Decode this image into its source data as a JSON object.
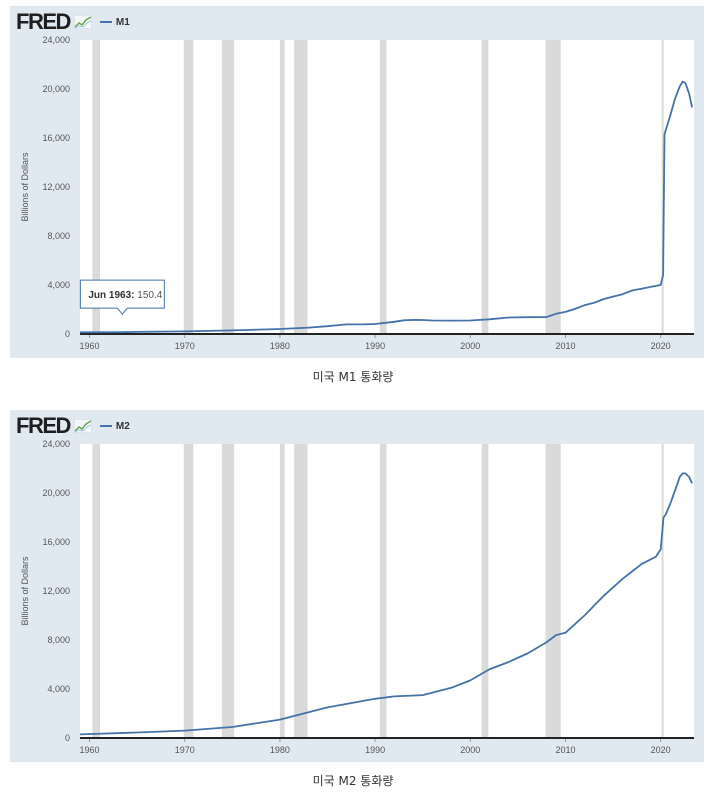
{
  "charts": [
    {
      "logo": "FRED",
      "legend_label": "M1",
      "caption": "미국 M1 통화량",
      "tooltip": {
        "label": "Jun 1963:",
        "value": "150.4",
        "x": 1963.45,
        "y": 150.4
      }
    },
    {
      "logo": "FRED",
      "legend_label": "M2",
      "caption": "미국 M2 통화량"
    }
  ],
  "colors": {
    "line": "#4572a7",
    "recession": "#dadada",
    "plot_bg": "#ffffff",
    "panel_bg": "#e1e9f0"
  },
  "recessions": [
    [
      1960.3,
      1961.1
    ],
    [
      1969.9,
      1970.9
    ],
    [
      1973.9,
      1975.2
    ],
    [
      1980.0,
      1980.5
    ],
    [
      1981.5,
      1982.9
    ],
    [
      1990.5,
      1991.2
    ],
    [
      2001.2,
      2001.9
    ],
    [
      2007.9,
      2009.5
    ],
    [
      2020.1,
      2020.3
    ]
  ],
  "chart_data": [
    {
      "type": "line",
      "title": "",
      "xlabel": "",
      "ylabel": "Billions of Dollars",
      "xlim": [
        1959,
        2023.5
      ],
      "ylim": [
        0,
        24000
      ],
      "yticks": [
        0,
        4000,
        8000,
        12000,
        16000,
        20000,
        24000
      ],
      "ytick_labels": [
        "0",
        "4,000",
        "8,000",
        "12,000",
        "16,000",
        "20,000",
        "24,000"
      ],
      "xticks": [
        1960,
        1970,
        1980,
        1990,
        2000,
        2010,
        2020
      ],
      "xtick_labels": [
        "1960",
        "1970",
        "1980",
        "1990",
        "2000",
        "2010",
        "2020"
      ],
      "series": [
        {
          "name": "M1",
          "x": [
            1959,
            1963.45,
            1965,
            1970,
            1975,
            1980,
            1983,
            1985,
            1987,
            1989,
            1990,
            1992,
            1993,
            1994,
            1995,
            1996,
            1998,
            2000,
            2001,
            2002,
            2004,
            2006,
            2008,
            2009,
            2010,
            2011,
            2012,
            2013,
            2014,
            2015,
            2016,
            2017,
            2018,
            2019,
            2020,
            2020.25,
            2020.4,
            2021,
            2021.5,
            2022,
            2022.3,
            2022.6,
            2023,
            2023.3
          ],
          "y": [
            140,
            150.4,
            170,
            215,
            290,
            410,
            525,
            640,
            780,
            790,
            820,
            1000,
            1120,
            1150,
            1140,
            1100,
            1090,
            1100,
            1150,
            1200,
            1350,
            1370,
            1380,
            1650,
            1800,
            2050,
            2350,
            2550,
            2850,
            3050,
            3250,
            3550,
            3700,
            3850,
            4000,
            4800,
            16300,
            17800,
            19200,
            20200,
            20600,
            20500,
            19600,
            18500
          ]
        }
      ]
    },
    {
      "type": "line",
      "title": "",
      "xlabel": "",
      "ylabel": "Billions of Dollars",
      "xlim": [
        1959,
        2023.5
      ],
      "ylim": [
        0,
        24000
      ],
      "yticks": [
        0,
        4000,
        8000,
        12000,
        16000,
        20000,
        24000
      ],
      "ytick_labels": [
        "0",
        "4,000",
        "8,000",
        "12,000",
        "16,000",
        "20,000",
        "24,000"
      ],
      "xticks": [
        1960,
        1970,
        1980,
        1990,
        2000,
        2010,
        2020
      ],
      "xtick_labels": [
        "1960",
        "1970",
        "1980",
        "1990",
        "2000",
        "2010",
        "2020"
      ],
      "series": [
        {
          "name": "M2",
          "x": [
            1959,
            1965,
            1970,
            1975,
            1980,
            1983,
            1985,
            1990,
            1992,
            1995,
            1998,
            2000,
            2002,
            2004,
            2006,
            2008,
            2009,
            2010,
            2012,
            2014,
            2016,
            2018,
            2019.5,
            2020,
            2020.3,
            2020.5,
            2021,
            2021.5,
            2022,
            2022.3,
            2022.6,
            2023,
            2023.3
          ],
          "y": [
            290,
            450,
            600,
            900,
            1500,
            2100,
            2500,
            3200,
            3400,
            3500,
            4100,
            4700,
            5600,
            6200,
            6900,
            7800,
            8400,
            8600,
            10000,
            11600,
            13000,
            14200,
            14800,
            15400,
            18000,
            18200,
            19100,
            20200,
            21300,
            21600,
            21600,
            21300,
            20800
          ]
        }
      ]
    }
  ]
}
